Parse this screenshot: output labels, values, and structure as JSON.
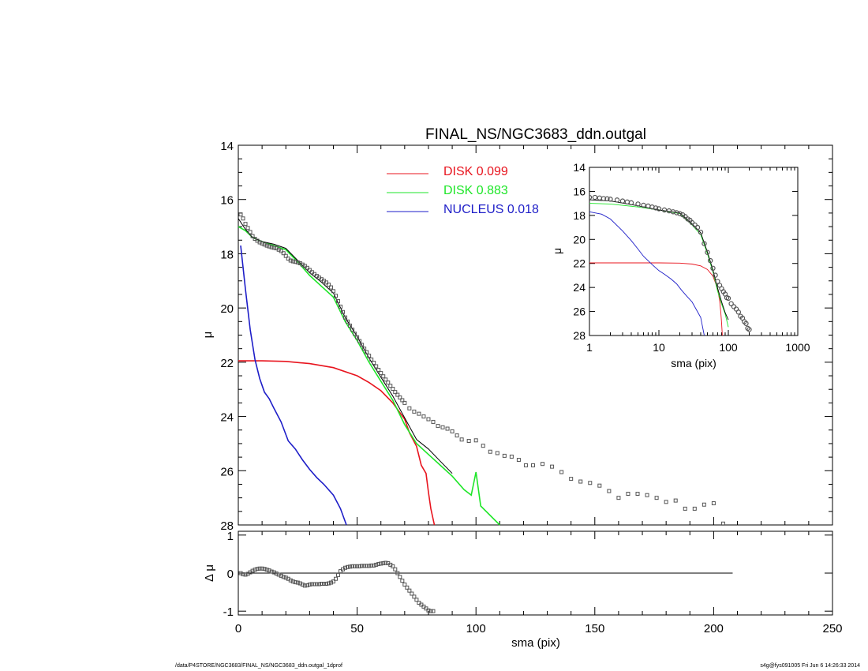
{
  "colors": {
    "disk1": "#e8141e",
    "disk2": "#1ee628",
    "nucleus": "#1e1ec8",
    "total": "#000000",
    "data": "#555555"
  },
  "footer": {
    "left": "/data/P4STORE/NGC3683/FINAL_NS/NGC3683_ddn.outgal_1dprof",
    "right": "s4g@fys091005  Fri Jun  6 14:26:33 2014"
  },
  "chart_data": [
    {
      "id": "main",
      "type": "line",
      "title": "FINAL_NS/NGC3683_ddn.outgal",
      "xlabel": "",
      "ylabel": "μ",
      "xlim": [
        0,
        250
      ],
      "ylim": [
        28,
        14
      ],
      "yticks": [
        14,
        16,
        18,
        20,
        22,
        24,
        26,
        28
      ],
      "ytick_labels": [
        "14",
        "16",
        "18",
        "20",
        "22",
        "24",
        "26",
        "28"
      ],
      "legend": [
        {
          "label": "DISK  0.099",
          "color": "#e8141e"
        },
        {
          "label": "DISK  0.883",
          "color": "#1ee628"
        },
        {
          "label": "NUCLEUS  0.018",
          "color": "#1e1ec8"
        }
      ],
      "series": [
        {
          "name": "DISK  0.099",
          "color": "#e8141e",
          "x": [
            0,
            10,
            20,
            30,
            40,
            50,
            55,
            60,
            65,
            70,
            72,
            75,
            77,
            79,
            80,
            81,
            82.5
          ],
          "y": [
            21.95,
            21.95,
            21.97,
            22.05,
            22.2,
            22.5,
            22.75,
            23.05,
            23.5,
            24.1,
            24.6,
            25.1,
            25.8,
            26.1,
            26.8,
            27.4,
            28
          ]
        },
        {
          "name": "DISK  0.883",
          "color": "#1ee628",
          "x": [
            0,
            3,
            6,
            10,
            15,
            20,
            25,
            30,
            35,
            40,
            45,
            50,
            55,
            60,
            65,
            70,
            75,
            80,
            85,
            90,
            95,
            98,
            100,
            102,
            110
          ],
          "y": [
            17,
            17.15,
            17.4,
            17.55,
            17.7,
            17.85,
            18.3,
            18.8,
            19.2,
            19.6,
            20.5,
            21.2,
            22,
            22.7,
            23.4,
            24.3,
            25,
            25.4,
            25.8,
            26.2,
            26.7,
            26.9,
            26.05,
            27.3,
            28
          ]
        },
        {
          "name": "",
          "color": "#000000",
          "x": [
            0,
            3,
            6,
            10,
            15,
            20,
            25,
            30,
            35,
            40,
            45,
            50,
            55,
            60,
            65,
            70,
            75,
            80,
            85,
            90
          ],
          "y": [
            16.7,
            17.1,
            17.4,
            17.55,
            17.65,
            17.8,
            18.25,
            18.7,
            19.05,
            19.45,
            20.35,
            21.05,
            21.85,
            22.55,
            23.25,
            24.05,
            24.85,
            25.2,
            25.65,
            26.1
          ]
        },
        {
          "name": "NUCLEUS  0.018",
          "color": "#1e1ec8",
          "x": [
            1,
            3,
            5,
            7,
            9,
            11,
            13,
            15,
            18,
            21,
            24,
            27,
            30,
            33,
            36,
            40,
            43,
            45.5
          ],
          "y": [
            17.7,
            19.3,
            20.8,
            21.9,
            22.6,
            23.1,
            23.35,
            23.7,
            24.2,
            24.9,
            25.2,
            25.6,
            25.95,
            26.25,
            26.5,
            26.9,
            27.4,
            28
          ]
        },
        {
          "name": "",
          "color": "#555555",
          "marker": "square",
          "x": [
            1,
            2,
            3,
            4,
            5,
            6,
            7,
            8,
            9,
            10,
            11,
            12,
            13,
            14,
            15,
            16,
            17,
            18,
            19,
            20,
            21,
            22,
            23,
            24,
            25,
            26,
            27,
            28,
            29,
            30,
            31,
            32,
            33,
            34,
            35,
            36,
            37,
            38,
            39,
            40,
            41,
            42,
            43,
            44,
            45,
            46,
            47,
            48,
            49,
            50,
            51,
            52,
            53,
            54,
            55,
            56,
            57,
            58,
            59,
            60,
            61,
            62,
            63,
            64,
            65,
            66,
            67,
            68,
            69,
            70,
            72,
            74,
            76,
            78,
            80,
            82,
            84,
            86,
            88,
            90,
            92,
            94,
            97,
            100,
            103,
            106,
            109,
            112,
            115,
            118,
            121,
            124,
            128,
            132,
            136,
            140,
            144,
            148,
            152,
            156,
            160,
            164,
            168,
            172,
            176,
            180,
            184,
            188,
            192,
            196,
            200,
            204
          ],
          "y": [
            16.55,
            16.7,
            16.9,
            17.05,
            17.2,
            17.35,
            17.45,
            17.52,
            17.58,
            17.62,
            17.66,
            17.7,
            17.73,
            17.76,
            17.78,
            17.8,
            17.85,
            17.9,
            17.98,
            18.08,
            18.18,
            18.25,
            18.28,
            18.3,
            18.32,
            18.35,
            18.4,
            18.45,
            18.52,
            18.6,
            18.68,
            18.75,
            18.82,
            18.88,
            18.94,
            19.0,
            19.06,
            19.14,
            19.24,
            19.38,
            19.55,
            19.75,
            19.95,
            20.15,
            20.35,
            20.5,
            20.65,
            20.8,
            20.95,
            21.08,
            21.22,
            21.36,
            21.5,
            21.63,
            21.76,
            21.9,
            22.02,
            22.15,
            22.28,
            22.4,
            22.52,
            22.64,
            22.75,
            22.87,
            22.98,
            23.1,
            23.2,
            23.3,
            23.4,
            23.5,
            23.7,
            23.82,
            23.9,
            24.0,
            24.1,
            24.2,
            24.35,
            24.4,
            24.45,
            24.55,
            24.7,
            24.85,
            24.9,
            24.88,
            25.08,
            25.3,
            25.35,
            25.45,
            25.48,
            25.6,
            25.8,
            25.8,
            25.75,
            25.85,
            26.05,
            26.3,
            26.4,
            26.45,
            26.55,
            26.75,
            27.0,
            26.85,
            26.85,
            26.9,
            27.0,
            27.15,
            27.1,
            27.4,
            27.4,
            27.25,
            27.2,
            27.95
          ]
        }
      ]
    },
    {
      "id": "residual",
      "type": "scatter",
      "xlabel": "sma (pix)",
      "ylabel": "Δ μ",
      "xlim": [
        0,
        250
      ],
      "ylim": [
        -1.1,
        1.1
      ],
      "xticks": [
        0,
        50,
        100,
        150,
        200,
        250
      ],
      "xtick_labels": [
        "0",
        "50",
        "100",
        "150",
        "200",
        "250"
      ],
      "yticks": [
        1,
        0,
        -1
      ],
      "ytick_labels": [
        "1",
        "0",
        "-1"
      ],
      "zero_line": {
        "x": [
          0,
          208
        ],
        "y": [
          0,
          0
        ]
      },
      "x": [
        1,
        2,
        3,
        4,
        5,
        6,
        7,
        8,
        9,
        10,
        11,
        12,
        13,
        14,
        15,
        16,
        17,
        18,
        19,
        20,
        21,
        22,
        23,
        24,
        25,
        26,
        27,
        28,
        29,
        30,
        31,
        32,
        33,
        34,
        35,
        36,
        37,
        38,
        39,
        40,
        41,
        42,
        43,
        44,
        45,
        46,
        47,
        48,
        49,
        50,
        51,
        52,
        53,
        54,
        55,
        56,
        57,
        58,
        59,
        60,
        61,
        62,
        63,
        64,
        65,
        66,
        67,
        68,
        69,
        70,
        71,
        72,
        73,
        74,
        75,
        76,
        77,
        78,
        79,
        80,
        81,
        82
      ],
      "y": [
        0.0,
        -0.03,
        -0.04,
        -0.02,
        0.02,
        0.06,
        0.09,
        0.11,
        0.12,
        0.12,
        0.11,
        0.09,
        0.07,
        0.04,
        0.02,
        -0.01,
        -0.04,
        -0.07,
        -0.1,
        -0.12,
        -0.15,
        -0.19,
        -0.22,
        -0.24,
        -0.25,
        -0.27,
        -0.3,
        -0.33,
        -0.32,
        -0.3,
        -0.29,
        -0.29,
        -0.29,
        -0.29,
        -0.28,
        -0.28,
        -0.28,
        -0.27,
        -0.25,
        -0.22,
        -0.15,
        -0.05,
        0.05,
        0.1,
        0.14,
        0.16,
        0.17,
        0.18,
        0.18,
        0.18,
        0.18,
        0.19,
        0.19,
        0.19,
        0.19,
        0.2,
        0.2,
        0.22,
        0.24,
        0.25,
        0.26,
        0.27,
        0.26,
        0.22,
        0.18,
        0.1,
        0.0,
        -0.1,
        -0.2,
        -0.3,
        -0.38,
        -0.46,
        -0.54,
        -0.62,
        -0.7,
        -0.78,
        -0.83,
        -0.88,
        -0.93,
        -0.98,
        -1.0,
        -1.0
      ]
    },
    {
      "id": "inset",
      "type": "line",
      "xlabel": "sma (pix)",
      "ylabel": "μ",
      "xscale": "log",
      "xlim": [
        1,
        1000
      ],
      "ylim": [
        28,
        14
      ],
      "xticks": [
        1,
        10,
        100,
        1000
      ],
      "xtick_labels": [
        "1",
        "10",
        "100",
        "1000"
      ],
      "yticks": [
        14,
        16,
        18,
        20,
        22,
        24,
        26,
        28
      ],
      "ytick_labels": [
        "14",
        "16",
        "18",
        "20",
        "22",
        "24",
        "26",
        "28"
      ],
      "series": [
        {
          "name": "",
          "color": "#e8141e",
          "x": [
            1,
            5,
            10,
            20,
            30,
            40,
            50,
            60,
            70,
            75,
            78,
            80,
            82
          ],
          "y": [
            21.95,
            21.95,
            21.95,
            21.97,
            22.05,
            22.2,
            22.5,
            23.05,
            24.1,
            25.1,
            26.1,
            27.0,
            28
          ]
        },
        {
          "name": "",
          "color": "#1ee628",
          "x": [
            1,
            2,
            5,
            10,
            20,
            30,
            40,
            50,
            60,
            70,
            80,
            90,
            100
          ],
          "y": [
            17,
            17.05,
            17.3,
            17.55,
            17.85,
            18.8,
            19.6,
            21.2,
            22.7,
            24.3,
            25.4,
            26.2,
            27.3
          ]
        },
        {
          "name": "",
          "color": "#000000",
          "x": [
            1,
            2,
            5,
            10,
            20,
            30,
            40,
            50,
            60,
            70,
            80,
            90,
            100
          ],
          "y": [
            16.7,
            16.8,
            17.2,
            17.55,
            17.8,
            18.7,
            19.45,
            21.05,
            22.55,
            24.05,
            25.2,
            26.1,
            26.7
          ]
        },
        {
          "name": "",
          "color": "#1e1ec8",
          "x": [
            1,
            1.5,
            2,
            3,
            4,
            5,
            6,
            8,
            10,
            12,
            15,
            18,
            21,
            25,
            30,
            35,
            40,
            45
          ],
          "y": [
            17.7,
            17.9,
            18.3,
            19.3,
            20.1,
            20.8,
            21.4,
            22.1,
            22.6,
            22.9,
            23.3,
            23.7,
            24.2,
            24.7,
            25.2,
            25.9,
            26.5,
            28
          ]
        },
        {
          "name": "",
          "color": "#555555",
          "marker": "circle",
          "x": [
            1,
            1.2,
            1.4,
            1.6,
            1.8,
            2,
            2.5,
            3,
            3.5,
            4,
            5,
            6,
            7,
            8,
            9,
            10,
            12,
            14,
            16,
            18,
            20,
            22,
            24,
            26,
            28,
            30,
            33,
            36,
            40,
            45,
            50,
            55,
            60,
            65,
            70,
            75,
            80,
            85,
            90,
            95,
            100,
            110,
            120,
            130,
            140,
            150,
            160,
            170,
            180,
            190,
            200
          ],
          "y": [
            16.5,
            16.5,
            16.55,
            16.6,
            16.62,
            16.65,
            16.72,
            16.8,
            16.88,
            16.95,
            17.05,
            17.15,
            17.22,
            17.3,
            17.38,
            17.45,
            17.55,
            17.62,
            17.7,
            17.78,
            17.85,
            17.95,
            18.1,
            18.3,
            18.4,
            18.6,
            18.8,
            19.0,
            19.4,
            20.35,
            21.08,
            21.76,
            22.4,
            22.98,
            23.5,
            23.82,
            24.1,
            24.35,
            24.55,
            24.85,
            24.9,
            25.35,
            25.6,
            25.8,
            26.05,
            26.4,
            26.55,
            26.85,
            27.0,
            27.4,
            27.5
          ]
        }
      ]
    }
  ]
}
